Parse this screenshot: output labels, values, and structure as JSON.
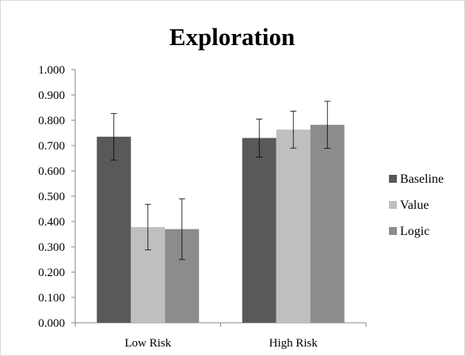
{
  "chart_data": {
    "type": "bar",
    "title": "Exploration",
    "xlabel": "",
    "ylabel": "",
    "categories": [
      "Low Risk",
      "High Risk"
    ],
    "ylim": [
      0,
      1
    ],
    "yticks": [
      "0.000",
      "0.100",
      "0.200",
      "0.300",
      "0.400",
      "0.500",
      "0.600",
      "0.700",
      "0.800",
      "0.900",
      "1.000"
    ],
    "grid": false,
    "legend_position": "right",
    "error_bars": true,
    "series": [
      {
        "name": "Baseline",
        "color": "#595959",
        "values": [
          0.735,
          0.73
        ],
        "errors": [
          0.092,
          0.075
        ]
      },
      {
        "name": "Value",
        "color": "#bfbfbf",
        "values": [
          0.378,
          0.763
        ],
        "errors": [
          0.09,
          0.073
        ]
      },
      {
        "name": "Logic",
        "color": "#8c8c8c",
        "values": [
          0.37,
          0.782
        ],
        "errors": [
          0.12,
          0.093
        ]
      }
    ]
  }
}
